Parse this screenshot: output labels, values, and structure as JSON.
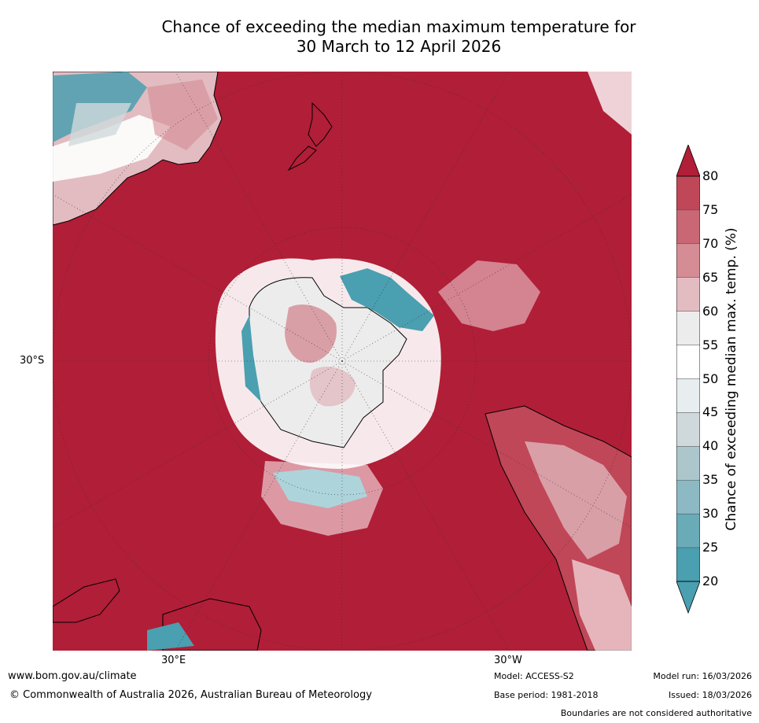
{
  "title": {
    "line1": "Chance of exceeding the median maximum temperature for",
    "line2": "30 March to 12 April 2026"
  },
  "map": {
    "projection": "south-polar-stereographic",
    "lat_label": "30°S",
    "lon_labels": [
      "30°E",
      "30°W"
    ]
  },
  "colorbar": {
    "title": "Chance of exceeding median max. temp. (%)",
    "ticks": [
      "80",
      "75",
      "70",
      "65",
      "60",
      "55",
      "50",
      "45",
      "40",
      "35",
      "30",
      "25",
      "20"
    ],
    "colors": [
      "#b11e37",
      "#c04757",
      "#ca6774",
      "#d58c95",
      "#e2bcc1",
      "#ececec",
      "#ffffff",
      "#e8eef0",
      "#cfd9db",
      "#acc6cc",
      "#8cb9c4",
      "#6aabb8",
      "#4a9fb0"
    ]
  },
  "footer": {
    "website": "www.bom.gov.au/climate",
    "copyright": "© Commonwealth of Australia 2026, Australian Bureau of Meteorology",
    "model": "Model: ACCESS-S2",
    "base_period": "Base period: 1981-2018",
    "model_run": "Model run: 16/03/2026",
    "issued": "Issued: 18/03/2026",
    "disclaimer": "Boundaries are not considered authoritative"
  }
}
